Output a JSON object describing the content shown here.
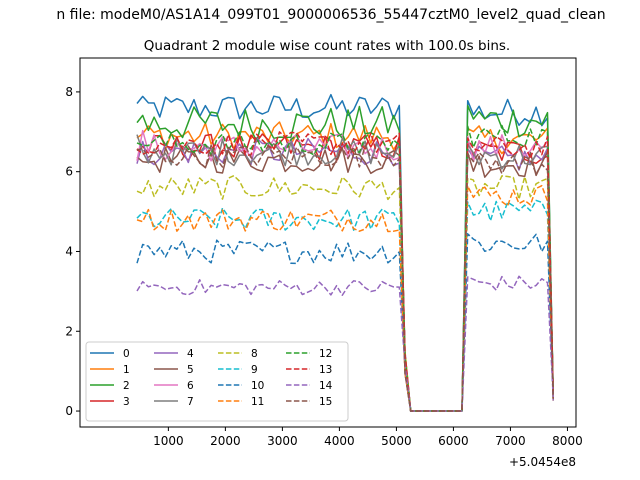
{
  "chart_data": {
    "type": "line",
    "suptitle": "n file: modeM0/AS1A14_099T01_9000006536_55447cztM0_level2_quad_clean",
    "title": "Quadrant 2 module wise count rates with 100.0s bins.",
    "xlabel": "",
    "ylabel": "",
    "x_offset_label": "+5.0454e8",
    "xlim": [
      -550,
      8150
    ],
    "ylim": [
      -0.4,
      8.85
    ],
    "xticks": [
      1000,
      2000,
      3000,
      4000,
      5000,
      6000,
      7000,
      8000
    ],
    "yticks": [
      0,
      2,
      4,
      6,
      8
    ],
    "grid": false,
    "legend_position": "lower-left",
    "legend_columns": 4,
    "segments": [
      {
        "start": 450,
        "end": 5050,
        "step": 100
      },
      {
        "start": 5150,
        "end": 6150,
        "step": 100
      },
      {
        "start": 6250,
        "end": 7750,
        "step": 100
      }
    ],
    "series": [
      {
        "name": "0",
        "color": "#1f77b4",
        "dash": "solid",
        "level_a": 7.6,
        "level_b": 7.5,
        "spread": 0.35
      },
      {
        "name": "1",
        "color": "#ff7f0e",
        "dash": "solid",
        "level_a": 6.9,
        "level_b": 6.8,
        "spread": 0.35
      },
      {
        "name": "2",
        "color": "#2ca02c",
        "dash": "solid",
        "level_a": 7.2,
        "level_b": 7.3,
        "spread": 0.45
      },
      {
        "name": "3",
        "color": "#d62728",
        "dash": "solid",
        "level_a": 6.6,
        "level_b": 6.5,
        "spread": 0.35
      },
      {
        "name": "4",
        "color": "#9467bd",
        "dash": "solid",
        "level_a": 6.5,
        "level_b": 6.3,
        "spread": 0.35
      },
      {
        "name": "5",
        "color": "#8c564b",
        "dash": "solid",
        "level_a": 6.3,
        "level_b": 6.2,
        "spread": 0.35
      },
      {
        "name": "6",
        "color": "#e377c2",
        "dash": "solid",
        "level_a": 6.6,
        "level_b": 6.6,
        "spread": 0.35
      },
      {
        "name": "7",
        "color": "#7f7f7f",
        "dash": "solid",
        "level_a": 6.5,
        "level_b": 6.4,
        "spread": 0.35
      },
      {
        "name": "8",
        "color": "#bcbd22",
        "dash": "dashed",
        "level_a": 5.6,
        "level_b": 5.6,
        "spread": 0.3
      },
      {
        "name": "9",
        "color": "#17becf",
        "dash": "dashed",
        "level_a": 4.8,
        "level_b": 5.0,
        "spread": 0.3
      },
      {
        "name": "10",
        "color": "#1f77b4",
        "dash": "dashed",
        "level_a": 4.0,
        "level_b": 4.2,
        "spread": 0.3
      },
      {
        "name": "11",
        "color": "#ff7f0e",
        "dash": "dashed",
        "level_a": 4.8,
        "level_b": 5.4,
        "spread": 0.3
      },
      {
        "name": "12",
        "color": "#2ca02c",
        "dash": "dashed",
        "level_a": 6.7,
        "level_b": 6.9,
        "spread": 0.3
      },
      {
        "name": "13",
        "color": "#d62728",
        "dash": "dashed",
        "level_a": 6.7,
        "level_b": 6.6,
        "spread": 0.3
      },
      {
        "name": "14",
        "color": "#9467bd",
        "dash": "dashed",
        "level_a": 3.1,
        "level_b": 3.2,
        "spread": 0.2
      },
      {
        "name": "15",
        "color": "#8c564b",
        "dash": "dashed",
        "level_a": 6.4,
        "level_b": 6.2,
        "spread": 0.3
      }
    ]
  }
}
